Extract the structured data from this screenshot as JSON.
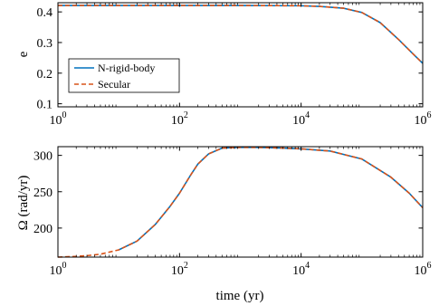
{
  "chart_data": [
    {
      "type": "line",
      "title": "",
      "xlabel": "",
      "ylabel": "e",
      "xscale": "log",
      "xlim": [
        1,
        1000000
      ],
      "ylim": [
        0.09,
        0.43
      ],
      "xticks": [
        {
          "value": 1,
          "base": "10",
          "exp": "0"
        },
        {
          "value": 100,
          "base": "10",
          "exp": "2"
        },
        {
          "value": 10000,
          "base": "10",
          "exp": "4"
        },
        {
          "value": 1000000,
          "base": "10",
          "exp": "6"
        }
      ],
      "yticks": [
        {
          "value": 0.1,
          "label": "0.1"
        },
        {
          "value": 0.2,
          "label": "0.2"
        },
        {
          "value": 0.3,
          "label": "0.3"
        },
        {
          "value": 0.4,
          "label": "0.4"
        }
      ],
      "grid": false,
      "legend": "lower-left",
      "series": [
        {
          "name": "N-rigid-body",
          "color": "#0072BD",
          "style": "solid",
          "x": [
            1,
            10,
            100,
            1000,
            10000,
            20000,
            50000,
            100000,
            200000,
            400000,
            700000,
            1000000
          ],
          "y": [
            0.421,
            0.421,
            0.421,
            0.421,
            0.42,
            0.418,
            0.412,
            0.398,
            0.365,
            0.31,
            0.262,
            0.232
          ]
        },
        {
          "name": "Secular",
          "color": "#D95319",
          "style": "dashed",
          "x": [
            1,
            10,
            100,
            1000,
            10000,
            20000,
            50000,
            100000,
            200000,
            400000,
            700000,
            1000000
          ],
          "y": [
            0.421,
            0.421,
            0.421,
            0.421,
            0.42,
            0.418,
            0.412,
            0.398,
            0.365,
            0.31,
            0.262,
            0.232
          ]
        }
      ]
    },
    {
      "type": "line",
      "title": "",
      "xlabel": "time (yr)",
      "ylabel": "Ω (rad/yr)",
      "xscale": "log",
      "xlim": [
        1,
        1000000
      ],
      "ylim": [
        160,
        312
      ],
      "xticks": [
        {
          "value": 1,
          "base": "10",
          "exp": "0"
        },
        {
          "value": 100,
          "base": "10",
          "exp": "2"
        },
        {
          "value": 10000,
          "base": "10",
          "exp": "4"
        },
        {
          "value": 1000000,
          "base": "10",
          "exp": "6"
        }
      ],
      "yticks": [
        {
          "value": 200,
          "label": "200"
        },
        {
          "value": 250,
          "label": "250"
        },
        {
          "value": 300,
          "label": "300"
        }
      ],
      "grid": false,
      "series": [
        {
          "name": "N-rigid-body",
          "color": "#0072BD",
          "style": "solid",
          "x": [
            10,
            20,
            40,
            70,
            100,
            150,
            200,
            300,
            500,
            1000,
            2000,
            5000,
            10000,
            30000,
            100000,
            300000,
            600000,
            1000000
          ],
          "y": [
            170,
            182,
            205,
            230,
            248,
            272,
            288,
            302,
            310,
            311,
            311,
            310,
            309,
            306,
            295,
            270,
            248,
            228
          ]
        },
        {
          "name": "Secular",
          "color": "#D95319",
          "style": "dashed",
          "x": [
            1,
            2,
            3,
            5,
            10,
            20,
            40,
            70,
            100,
            150,
            200,
            300,
            500,
            1000,
            2000,
            5000,
            10000,
            30000,
            100000,
            300000,
            600000,
            1000000
          ],
          "y": [
            160,
            161,
            162,
            164,
            170,
            182,
            205,
            230,
            248,
            272,
            288,
            302,
            310,
            311,
            311,
            310,
            309,
            306,
            295,
            270,
            248,
            228
          ]
        }
      ]
    }
  ]
}
